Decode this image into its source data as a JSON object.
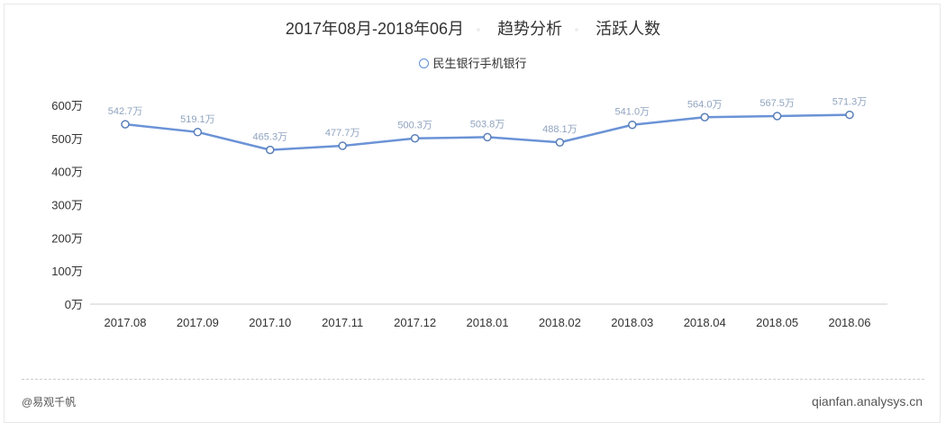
{
  "header": {
    "title_parts": [
      "2017年08月-2018年06月",
      "趋势分析",
      "活跃人数"
    ]
  },
  "chart_data": {
    "type": "line",
    "categories": [
      "2017.08",
      "2017.09",
      "2017.10",
      "2017.11",
      "2017.12",
      "2018.01",
      "2018.02",
      "2018.03",
      "2018.04",
      "2018.05",
      "2018.06"
    ],
    "series": [
      {
        "name": "民生银行手机银行",
        "values": [
          542.7,
          519.1,
          465.3,
          477.7,
          500.3,
          503.8,
          488.1,
          541.0,
          564.0,
          567.5,
          571.3
        ],
        "color": "#6b93d6"
      }
    ],
    "data_labels": [
      "542.7万",
      "519.1万",
      "465.3万",
      "477.7万",
      "500.3万",
      "503.8万",
      "488.1万",
      "541.0万",
      "564.0万",
      "567.5万",
      "571.3万"
    ],
    "yticks": [
      "0万",
      "100万",
      "200万",
      "300万",
      "400万",
      "500万",
      "600万"
    ],
    "ylim": [
      0,
      600
    ],
    "legend_position": "top-center",
    "grid": false
  },
  "footer": {
    "left": "@易观千帆",
    "right": "qianfan.analysys.cn"
  }
}
